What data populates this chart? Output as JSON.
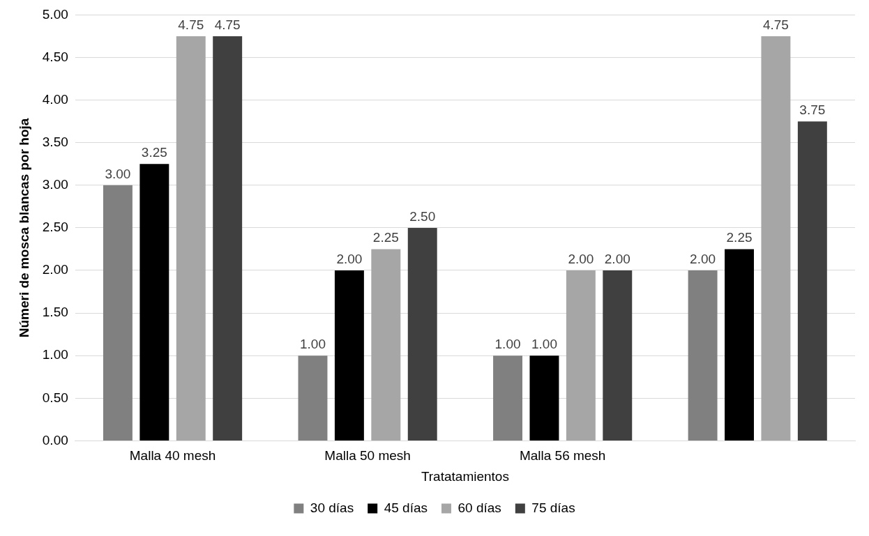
{
  "chart_data": {
    "type": "bar",
    "xlabel": "Tratatamientos",
    "ylabel": "Númeri de mosca blancas por hoja",
    "categories": [
      "Malla 40 mesh",
      "Malla 50 mesh",
      "Malla 56 mesh",
      null
    ],
    "series": [
      {
        "name": "30 días",
        "color": "#808080",
        "values": [
          3,
          1,
          1,
          2
        ],
        "value_labels": [
          "3.00",
          "1.00",
          "1.00",
          "2.00"
        ]
      },
      {
        "name": "45 días",
        "color": "#000000",
        "values": [
          3.25,
          2,
          1,
          2.25
        ],
        "value_labels": [
          "3.25",
          "2.00",
          "1.00",
          "2.25"
        ]
      },
      {
        "name": "60 días",
        "color": "#a6a6a6",
        "values": [
          4.75,
          2.25,
          2,
          4.75
        ],
        "value_labels": [
          "4.75",
          "2.25",
          "2.00",
          "4.75"
        ]
      },
      {
        "name": "75 días",
        "color": "#404040",
        "values": [
          4.75,
          2.5,
          2,
          3.75
        ],
        "value_labels": [
          "4.75",
          "2.50",
          "2.00",
          "3.75"
        ]
      }
    ],
    "ylim": [
      0,
      5
    ],
    "yticks": [
      {
        "value": 0,
        "label": "0.00"
      },
      {
        "value": 0.5,
        "label": "0.50"
      },
      {
        "value": 1,
        "label": "1.00"
      },
      {
        "value": 1.5,
        "label": "1.50"
      },
      {
        "value": 2,
        "label": "2.00"
      },
      {
        "value": 2.5,
        "label": "2.50"
      },
      {
        "value": 3,
        "label": "3.00"
      },
      {
        "value": 3.5,
        "label": "3.50"
      },
      {
        "value": 4,
        "label": "4.00"
      },
      {
        "value": 4.5,
        "label": "4.50"
      },
      {
        "value": 5,
        "label": "5.00"
      }
    ],
    "grid": "y",
    "legend": "bottom"
  }
}
